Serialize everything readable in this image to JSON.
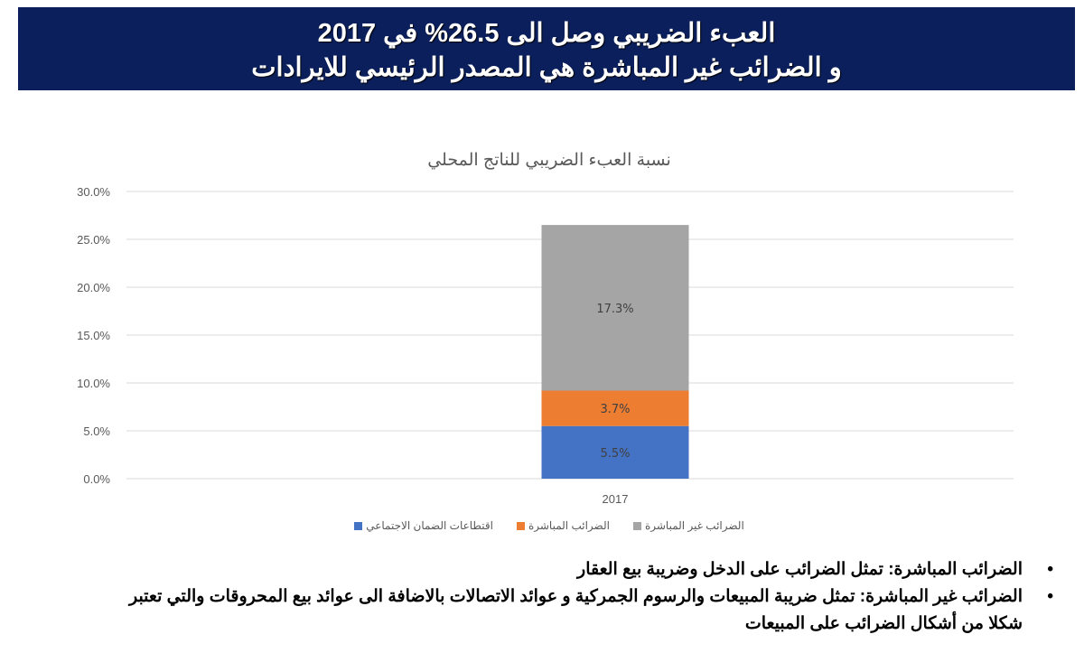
{
  "header": {
    "line1": "العبء الضريبي وصل الى 26.5% في 2017",
    "line2": "و الضرائب غير المباشرة هي المصدر الرئيسي للايرادات"
  },
  "chart_data": {
    "type": "bar",
    "stacked": true,
    "title": "نسبة العبء الضريبي للناتج المحلي",
    "categories": [
      "2017"
    ],
    "series": [
      {
        "name": "اقتطاعات الضمان الاجتماعي",
        "values": [
          5.5
        ],
        "label": "5.5%",
        "color": "#4472c4"
      },
      {
        "name": "الضرائب المباشرة",
        "values": [
          3.7
        ],
        "label": "3.7%",
        "color": "#ed7d31"
      },
      {
        "name": "الضرائب غير المباشرة",
        "values": [
          17.3
        ],
        "label": "17.3%",
        "color": "#a5a5a5"
      }
    ],
    "ylim": [
      0,
      30
    ],
    "yticks": [
      "0.0%",
      "5.0%",
      "10.0%",
      "15.0%",
      "20.0%",
      "25.0%",
      "30.0%"
    ],
    "grid": true,
    "legend": "bottom"
  },
  "notes": [
    "الضرائب المباشرة: تمثل الضرائب على الدخل وضريبة بيع العقار",
    "الضرائب غير المباشرة: تمثل ضريبة المبيعات والرسوم الجمركية و عوائد الاتصالات بالاضافة الى عوائد بيع المحروقات والتي تعتبر شكلا من أشكال الضرائب على المبيعات"
  ]
}
